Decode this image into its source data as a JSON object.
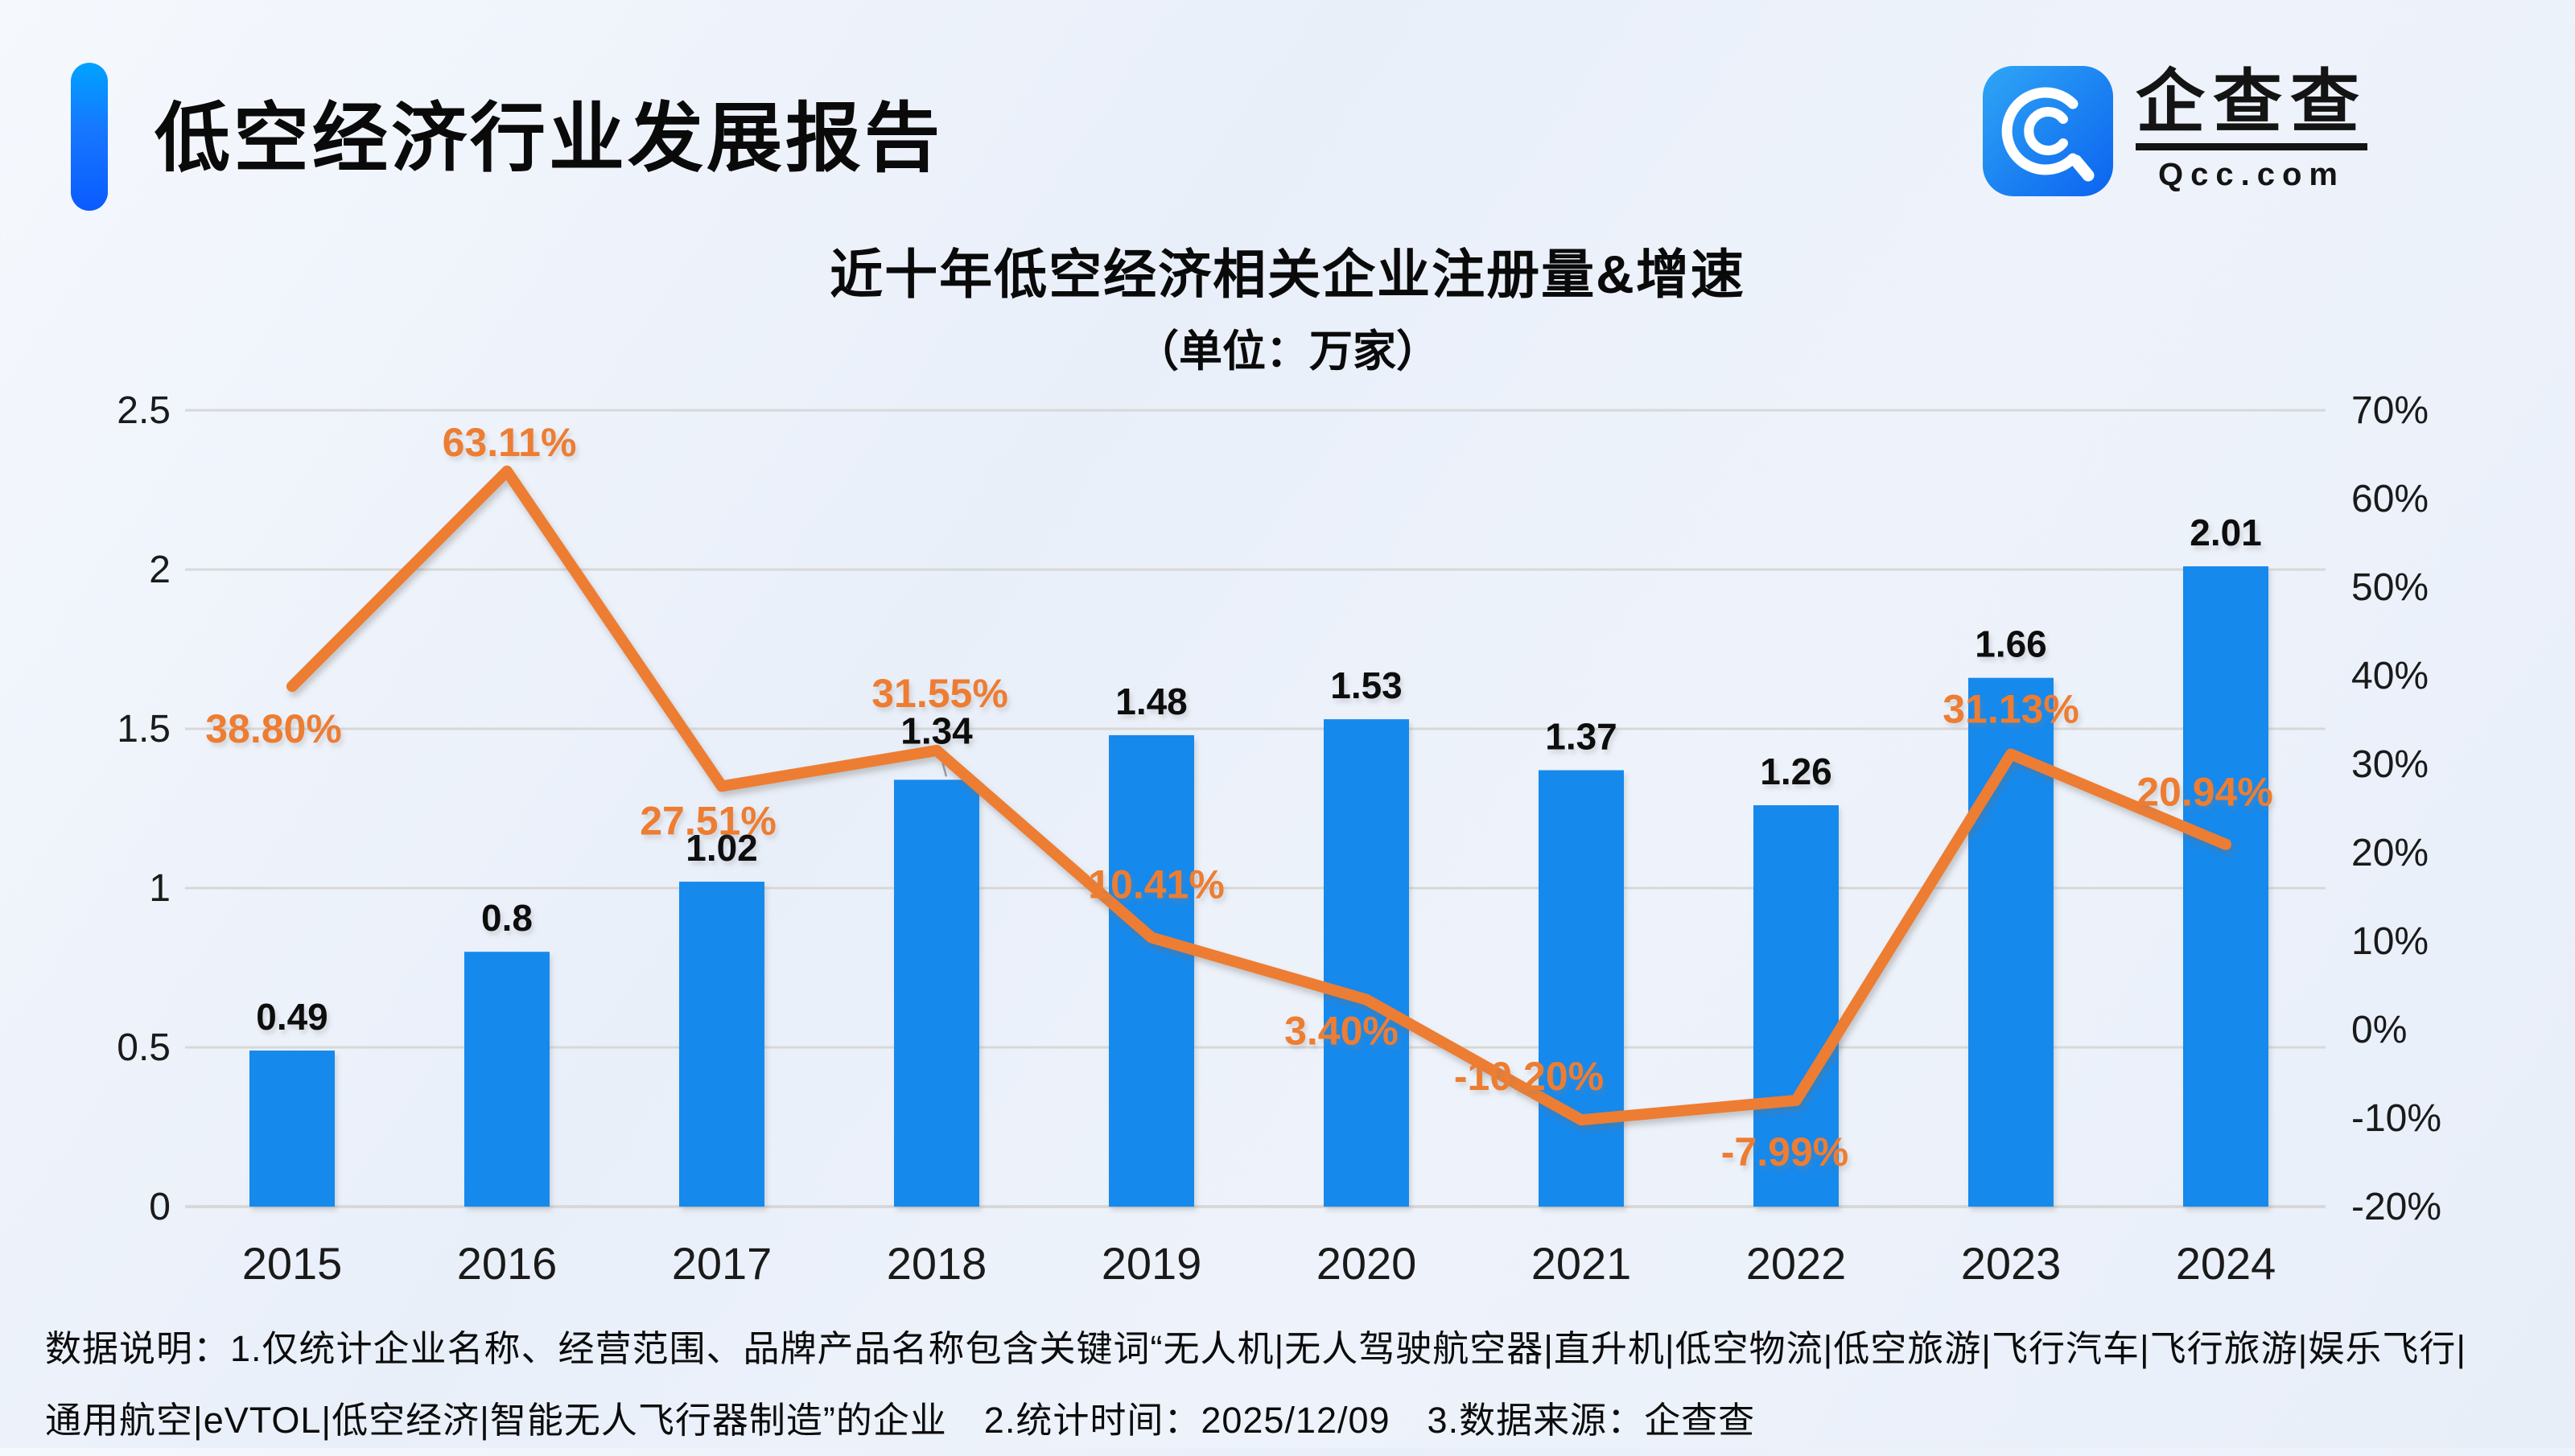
{
  "header": {
    "title": "低空经济行业发展报告",
    "logo": {
      "icon": "qcc-logo-icon",
      "brand_zh": "企查查",
      "brand_en": "Qcc.com"
    }
  },
  "chart_data": {
    "type": "bar+line",
    "title": "近十年低空经济相关企业注册量&增速",
    "subtitle": "（单位：万家）",
    "categories": [
      "2015",
      "2016",
      "2017",
      "2018",
      "2019",
      "2020",
      "2021",
      "2022",
      "2023",
      "2024"
    ],
    "series": [
      {
        "name": "企业注册量",
        "type": "bar",
        "axis": "left",
        "color": "#1789EC",
        "values": [
          0.49,
          0.8,
          1.02,
          1.34,
          1.48,
          1.53,
          1.37,
          1.26,
          1.66,
          2.01
        ],
        "labels": [
          "0.49",
          "0.8",
          "1.02",
          "1.34",
          "1.48",
          "1.53",
          "1.37",
          "1.26",
          "1.66",
          "2.01"
        ]
      },
      {
        "name": "增速",
        "type": "line",
        "axis": "right",
        "color": "#ED7D31",
        "values": [
          38.8,
          63.11,
          27.51,
          31.55,
          10.41,
          3.4,
          -10.2,
          -7.99,
          31.13,
          20.94
        ],
        "labels": [
          "38.80%",
          "63.11%",
          "27.51%",
          "31.55%",
          "10.41%",
          "3.40%",
          "-10.20%",
          "-7.99%",
          "31.13%",
          "20.94%"
        ]
      }
    ],
    "left_axis": {
      "min": 0,
      "max": 2.5,
      "tick_labels": [
        "0",
        "0.5",
        "1",
        "1.5",
        "2",
        "2.5"
      ]
    },
    "right_axis": {
      "min": -20,
      "max": 70,
      "tick_labels": [
        "70%",
        "60%",
        "50%",
        "40%",
        "30%",
        "20%",
        "10%",
        "0%",
        "-10%",
        "-20%"
      ]
    },
    "grid": true,
    "legend": "none",
    "colors": {
      "grid": "#d8d8d8",
      "bar_label": "#111111",
      "axis_label": "#1a1a1a"
    }
  },
  "footer": {
    "line1": "数据说明：1.仅统计企业名称、经营范围、品牌产品名称包含关键词“无人机|无人驾驶航空器|直升机|低空物流|低空旅游|飞行汽车|飞行旅游|娱乐飞行|",
    "line2": "通用航空|eVTOL|低空经济|智能无人飞行器制造”的企业　2.统计时间：2025/12/09　3.数据来源：企查查"
  }
}
